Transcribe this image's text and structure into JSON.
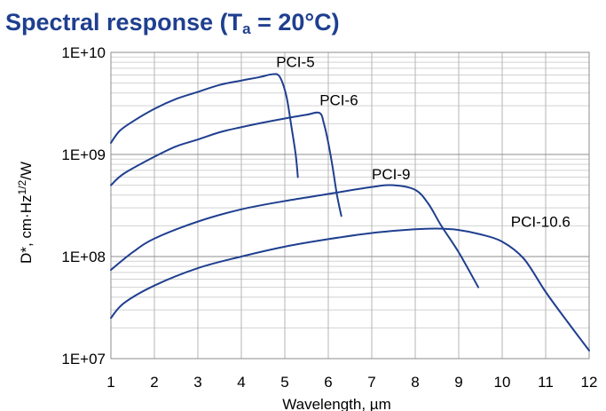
{
  "header": {
    "title_main": "Spectral response (T",
    "title_sub": "a",
    "title_end": " = 20°C)"
  },
  "chart_data": {
    "type": "line",
    "title": "Spectral response (Ta = 20°C)",
    "xlabel": "Wavelength, µm",
    "ylabel": "D*, cm·Hz1/2/W",
    "ylabel_parts": {
      "prefix": "D*, cm·Hz",
      "sup": "1/2",
      "suffix": "/W"
    },
    "yscale": "log",
    "xlim": [
      1,
      12
    ],
    "ylim": [
      10000000,
      10000000000
    ],
    "grid": true,
    "x_ticks": [
      1,
      2,
      3,
      4,
      5,
      6,
      7,
      8,
      9,
      10,
      11,
      12
    ],
    "x_tick_labels": [
      "1",
      "2",
      "3",
      "4",
      "5",
      "6",
      "7",
      "8",
      "9",
      "10",
      "11",
      "12"
    ],
    "y_ticks": [
      10000000,
      100000000,
      1000000000,
      10000000000
    ],
    "y_tick_labels": [
      "1E+07",
      "1E+08",
      "1E+09",
      "1E+10"
    ],
    "line_color": "#1f3f8f",
    "series": [
      {
        "name": "PCI-5",
        "label_at": [
          4.8,
          7200000000
        ],
        "x": [
          1.0,
          1.2,
          1.5,
          2.0,
          2.5,
          3.0,
          3.5,
          4.0,
          4.4,
          4.7,
          4.85,
          4.95,
          5.05,
          5.15,
          5.25,
          5.3
        ],
        "y": [
          1300000000,
          1700000000,
          2100000000,
          2800000000,
          3500000000,
          4100000000,
          4800000000,
          5300000000,
          5700000000,
          6100000000,
          6000000000,
          5000000000,
          3500000000,
          1900000000,
          1000000000,
          600000000
        ]
      },
      {
        "name": "PCI-6",
        "label_at": [
          5.8,
          3050000000
        ],
        "x": [
          1.0,
          1.3,
          2.0,
          2.5,
          3.0,
          3.5,
          4.0,
          4.5,
          5.0,
          5.5,
          5.8,
          5.9,
          6.0,
          6.1,
          6.2,
          6.3
        ],
        "y": [
          500000000,
          650000000,
          950000000,
          1200000000,
          1400000000,
          1650000000,
          1850000000,
          2050000000,
          2250000000,
          2450000000,
          2550000000,
          2000000000,
          1300000000,
          750000000,
          400000000,
          250000000
        ]
      },
      {
        "name": "PCI-9",
        "label_at": [
          7.0,
          570000000
        ],
        "x": [
          1.0,
          1.5,
          2.0,
          3.0,
          4.0,
          5.0,
          6.0,
          7.0,
          7.5,
          8.0,
          8.3,
          8.6,
          9.0,
          9.45
        ],
        "y": [
          74000000,
          110000000,
          150000000,
          220000000,
          290000000,
          350000000,
          410000000,
          480000000,
          500000000,
          450000000,
          330000000,
          200000000,
          110000000,
          50000000
        ]
      },
      {
        "name": "PCI-10.6",
        "label_at": [
          10.2,
          195000000
        ],
        "x": [
          1.0,
          1.3,
          2.0,
          3.0,
          4.0,
          5.0,
          6.0,
          7.0,
          8.0,
          8.5,
          9.0,
          9.5,
          10.0,
          10.5,
          11.0,
          11.5,
          12.0
        ],
        "y": [
          25000000,
          35000000,
          52000000,
          77000000,
          100000000,
          125000000,
          148000000,
          170000000,
          185000000,
          188000000,
          182000000,
          165000000,
          140000000,
          95000000,
          45000000,
          23000000,
          12000000
        ]
      }
    ]
  }
}
